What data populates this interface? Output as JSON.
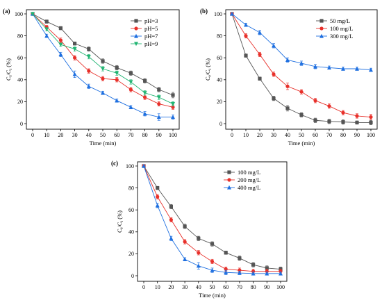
{
  "chart_data": [
    {
      "type": "line",
      "panel_label": "(a)",
      "xlabel": "Time (min)",
      "ylabel": "C",
      "ylabel_sub_1": "t",
      "ylabel_mid": "/C",
      "ylabel_sub_2": "i",
      "ylabel_unit": " (%)",
      "xlim": [
        0,
        100
      ],
      "ylim": [
        0,
        100
      ],
      "xticks": [
        0,
        10,
        20,
        30,
        40,
        50,
        60,
        70,
        80,
        90,
        100
      ],
      "yticks": [
        0,
        20,
        40,
        60,
        80,
        100
      ],
      "legend_position": "top-right",
      "x": [
        0,
        10,
        20,
        30,
        40,
        50,
        60,
        70,
        80,
        90,
        100
      ],
      "series": [
        {
          "name": "pH=3",
          "color": "#555555",
          "marker": "square",
          "values": [
            100,
            93,
            87,
            73,
            68,
            57,
            51,
            46,
            39,
            31,
            26
          ],
          "errors": [
            0,
            1.5,
            1.5,
            1.5,
            2,
            2,
            2,
            2,
            2,
            2,
            2.5
          ]
        },
        {
          "name": "pH=5",
          "color": "#e8302a",
          "marker": "circle",
          "values": [
            100,
            88,
            76,
            60,
            48,
            41,
            40,
            31,
            24,
            18,
            15
          ],
          "errors": [
            0,
            1.5,
            2,
            2,
            2,
            2,
            2,
            2,
            2,
            2,
            2
          ]
        },
        {
          "name": "pH=7",
          "color": "#1e6fe0",
          "marker": "triangle-up",
          "values": [
            100,
            80,
            63,
            45,
            34,
            28,
            21,
            15,
            9,
            6,
            6
          ],
          "errors": [
            0,
            1.5,
            2,
            3,
            2,
            1.5,
            1.5,
            1.5,
            2,
            3,
            2
          ]
        },
        {
          "name": "pH=9",
          "color": "#22b573",
          "marker": "triangle-down",
          "values": [
            100,
            86,
            72,
            68,
            61,
            50,
            46,
            38,
            28,
            24,
            18
          ],
          "errors": [
            0,
            1.5,
            1.5,
            2,
            2,
            2,
            2,
            2,
            2,
            2,
            2
          ]
        }
      ]
    },
    {
      "type": "line",
      "panel_label": "(b)",
      "xlabel": "Time (min)",
      "ylabel": "C",
      "ylabel_sub_1": "t",
      "ylabel_mid": "/C",
      "ylabel_sub_2": "i",
      "ylabel_unit": " (%)",
      "xlim": [
        0,
        100
      ],
      "ylim": [
        0,
        100
      ],
      "xticks": [
        0,
        10,
        20,
        30,
        40,
        50,
        60,
        70,
        80,
        90,
        100
      ],
      "yticks": [
        0,
        20,
        40,
        60,
        80,
        100
      ],
      "legend_position": "top-right",
      "x": [
        0,
        10,
        20,
        30,
        40,
        50,
        60,
        70,
        80,
        90,
        100
      ],
      "series": [
        {
          "name": "50 mg/L",
          "color": "#555555",
          "marker": "square",
          "values": [
            100,
            62,
            41,
            23,
            14,
            8,
            3,
            2,
            1.5,
            1,
            1
          ],
          "errors": [
            0,
            1.5,
            1.5,
            2,
            2.5,
            2,
            2,
            2,
            2,
            1.5,
            2
          ]
        },
        {
          "name": "100 mg/L",
          "color": "#e8302a",
          "marker": "circle",
          "values": [
            100,
            80,
            63,
            45,
            34,
            29,
            21,
            16,
            10,
            7,
            6
          ],
          "errors": [
            0,
            2,
            2,
            2,
            3,
            2,
            2,
            2,
            2,
            2,
            2.5
          ]
        },
        {
          "name": "300 mg/L",
          "color": "#1e6fe0",
          "marker": "triangle-up",
          "values": [
            100,
            90,
            83,
            71,
            58,
            55,
            52,
            51,
            50,
            50,
            49
          ],
          "errors": [
            0,
            1.5,
            2,
            2,
            2,
            2,
            2,
            1.5,
            1.5,
            1.5,
            1.5
          ]
        }
      ]
    },
    {
      "type": "line",
      "panel_label": "(c)",
      "xlabel": "Time (min)",
      "ylabel": "C",
      "ylabel_sub_1": "t",
      "ylabel_mid": "/C",
      "ylabel_sub_2": "i",
      "ylabel_unit": " (%)",
      "xlim": [
        0,
        100
      ],
      "ylim": [
        0,
        100
      ],
      "xticks": [
        0,
        10,
        20,
        30,
        40,
        50,
        60,
        70,
        80,
        90,
        100
      ],
      "yticks": [
        0,
        20,
        40,
        60,
        80,
        100
      ],
      "legend_position": "top-right",
      "x": [
        0,
        10,
        20,
        30,
        40,
        50,
        60,
        70,
        80,
        90,
        100
      ],
      "series": [
        {
          "name": "100 mg/L",
          "color": "#555555",
          "marker": "square",
          "values": [
            100,
            80,
            63,
            45,
            34,
            29,
            21,
            16,
            10,
            7,
            6
          ],
          "errors": [
            0,
            1.5,
            2,
            2,
            2,
            2,
            1.5,
            2,
            2,
            2,
            2
          ]
        },
        {
          "name": "200 mg/L",
          "color": "#e8302a",
          "marker": "circle",
          "values": [
            100,
            72,
            51,
            31,
            21,
            13,
            6,
            5,
            4,
            4,
            4
          ],
          "errors": [
            0,
            2,
            2,
            2,
            2,
            2,
            2,
            2,
            2,
            2,
            2
          ]
        },
        {
          "name": "400 mg/L",
          "color": "#1e6fe0",
          "marker": "triangle-up",
          "values": [
            100,
            64,
            34,
            15,
            9,
            5,
            3,
            2.5,
            2,
            2,
            2
          ],
          "errors": [
            0,
            2,
            2,
            1.5,
            3,
            2,
            2,
            1.5,
            1.5,
            1.5,
            1.5
          ]
        }
      ]
    }
  ]
}
